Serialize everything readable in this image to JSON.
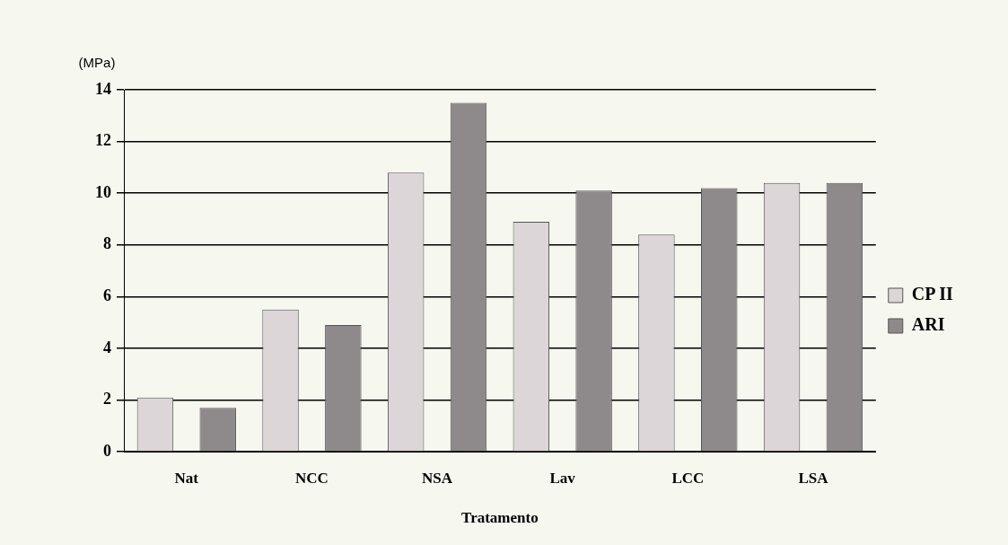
{
  "chart_data": {
    "type": "bar",
    "ylabel": "(MPa)",
    "xlabel": "Tratamento",
    "categories": [
      "Nat",
      "NCC",
      "NSA",
      "Lav",
      "LCC",
      "LSA"
    ],
    "series": [
      {
        "name": "CP II",
        "color": "#dcd6d8",
        "values": [
          2.1,
          5.5,
          10.8,
          8.9,
          8.4,
          10.4
        ]
      },
      {
        "name": "ARI",
        "color": "#8e8a8c",
        "values": [
          1.7,
          4.9,
          13.5,
          10.1,
          10.2,
          10.4
        ]
      }
    ],
    "ylim": [
      0,
      14
    ],
    "yticks": [
      0,
      2,
      4,
      6,
      8,
      10,
      12,
      14
    ],
    "grid": "y",
    "legend": "right"
  }
}
